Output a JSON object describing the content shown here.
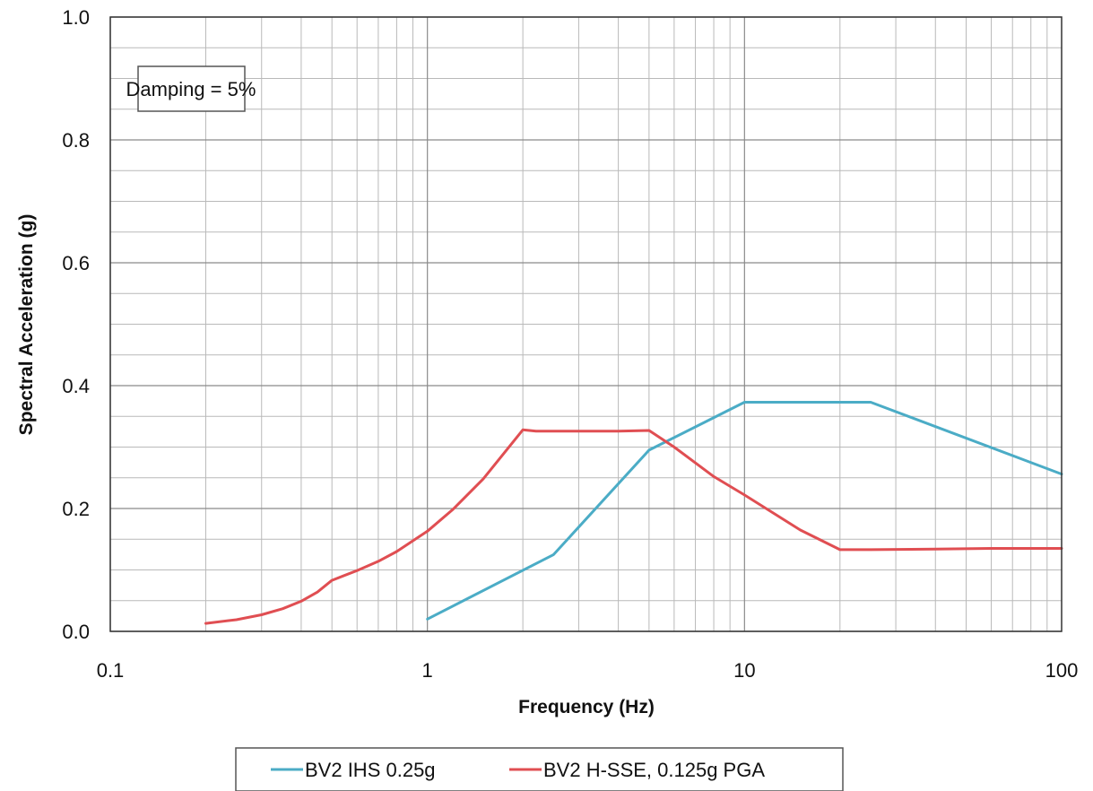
{
  "chart_data": {
    "type": "line",
    "title": "",
    "xlabel": "Frequency (Hz)",
    "ylabel": "Spectral Acceleration (g)",
    "x_scale": "log",
    "xlim": [
      0.1,
      100
    ],
    "ylim": [
      0,
      1
    ],
    "x_ticks": [
      {
        "value": 0.1,
        "label": "0.1"
      },
      {
        "value": 1,
        "label": "1"
      },
      {
        "value": 10,
        "label": "10"
      },
      {
        "value": 100,
        "label": "100"
      }
    ],
    "y_ticks": [
      {
        "value": 0,
        "label": "0.0"
      },
      {
        "value": 0.2,
        "label": "0.2"
      },
      {
        "value": 0.4,
        "label": "0.4"
      },
      {
        "value": 0.6,
        "label": "0.6"
      },
      {
        "value": 0.8,
        "label": "0.8"
      },
      {
        "value": 1,
        "label": "1.0"
      }
    ],
    "grid": true,
    "annotation": "Damping = 5%",
    "legend_position": "bottom",
    "series": [
      {
        "name": "BV2 IHS 0.25g",
        "color": "#4BACC6",
        "x": [
          1,
          2.5,
          5,
          10,
          25,
          100
        ],
        "y": [
          0.02,
          0.125,
          0.295,
          0.373,
          0.373,
          0.256
        ]
      },
      {
        "name": "BV2 H-SSE, 0.125g PGA",
        "color": "#E04E52",
        "x": [
          0.2,
          0.25,
          0.3,
          0.35,
          0.4,
          0.45,
          0.5,
          0.6,
          0.7,
          0.8,
          1,
          1.2,
          1.5,
          2,
          2.2,
          3,
          4,
          5,
          6,
          8,
          10,
          15,
          20,
          25,
          40,
          60,
          100
        ],
        "y": [
          0.013,
          0.019,
          0.027,
          0.037,
          0.049,
          0.064,
          0.083,
          0.099,
          0.114,
          0.13,
          0.163,
          0.198,
          0.248,
          0.328,
          0.326,
          0.326,
          0.326,
          0.327,
          0.3,
          0.252,
          0.222,
          0.165,
          0.133,
          0.133,
          0.134,
          0.135,
          0.135
        ]
      }
    ]
  }
}
